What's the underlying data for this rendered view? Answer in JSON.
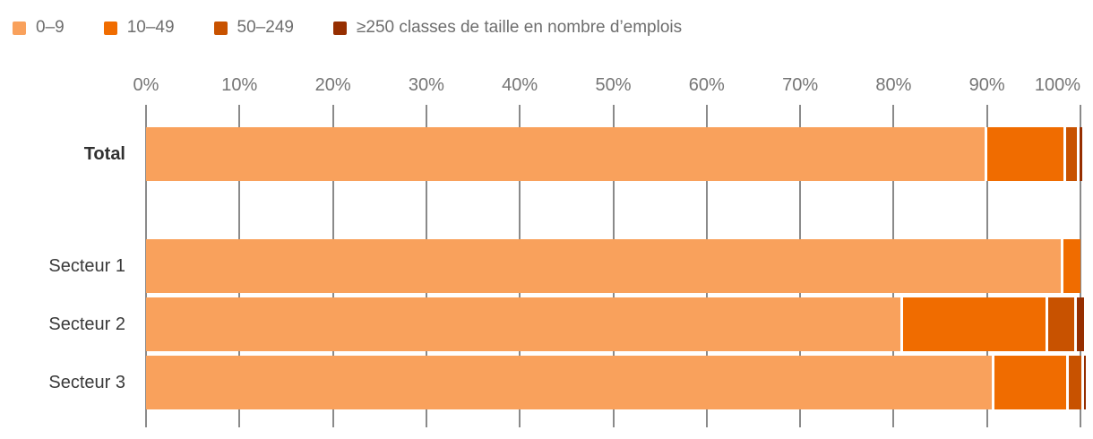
{
  "legend": {
    "items": [
      {
        "label": "0–9",
        "color": "#f9a15c"
      },
      {
        "label": "10–49",
        "color": "#f06c00"
      },
      {
        "label": "50–249",
        "color": "#c85200"
      },
      {
        "label": "≥250 classes de taille en nombre d’emplois",
        "color": "#962e00"
      }
    ]
  },
  "chart_data": {
    "type": "bar",
    "variant": "horizontal-stacked",
    "title": "",
    "unit": "%",
    "categories": [
      "Total",
      "Secteur 1",
      "Secteur 2",
      "Secteur 3"
    ],
    "series": [
      {
        "name": "0–9",
        "color": "#f9a15c",
        "values": [
          89.7,
          97.9,
          80.7,
          90.5
        ]
      },
      {
        "name": "10–49",
        "color": "#f06c00",
        "values": [
          8.5,
          2.1,
          15.6,
          8.0
        ]
      },
      {
        "name": "50–249",
        "color": "#c85200",
        "values": [
          1.4,
          0,
          3.0,
          1.6
        ]
      },
      {
        "name": "≥250",
        "color": "#962e00",
        "values": [
          0.6,
          0,
          1.1,
          0.5
        ]
      }
    ],
    "x_ticks": [
      "0%",
      "10%",
      "20%",
      "30%",
      "40%",
      "50%",
      "60%",
      "70%",
      "80%",
      "90%",
      "100%"
    ],
    "xlim": [
      0,
      100
    ],
    "grid": true,
    "legend_position": "top",
    "xlabel": "classes de taille en nombre d’emplois",
    "ylabel": ""
  }
}
